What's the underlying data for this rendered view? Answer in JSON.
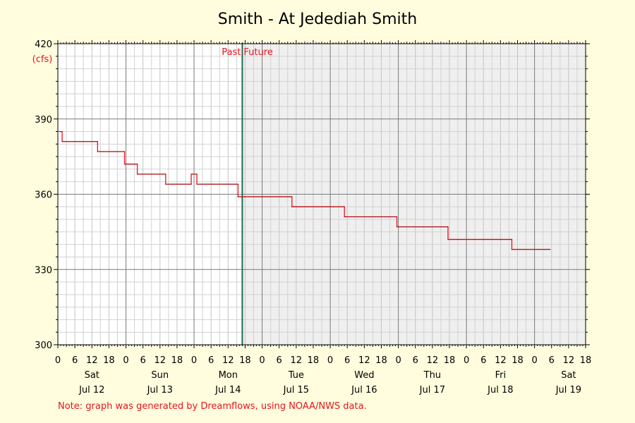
{
  "chart_data": {
    "type": "line",
    "title": "Smith - At Jedediah Smith",
    "y_unit": "(cfs)",
    "ylim": [
      300,
      420
    ],
    "y_ticks": [
      300,
      330,
      360,
      390,
      420
    ],
    "x_range_hours": [
      0,
      186
    ],
    "x_tick_labels": [
      "0",
      "6",
      "12",
      "18"
    ],
    "days": [
      {
        "day": "Sat",
        "date": "Jul 12"
      },
      {
        "day": "Sun",
        "date": "Jul 13"
      },
      {
        "day": "Mon",
        "date": "Jul 14"
      },
      {
        "day": "Tue",
        "date": "Jul 15"
      },
      {
        "day": "Wed",
        "date": "Jul 16"
      },
      {
        "day": "Thu",
        "date": "Jul 17"
      },
      {
        "day": "Fri",
        "date": "Jul 18"
      },
      {
        "day": "Sat",
        "date": "Jul 19"
      }
    ],
    "now_hour": 65,
    "past_label": "Past",
    "future_label": "Future",
    "grid": true,
    "series": [
      {
        "color": "#e8141e",
        "points": [
          [
            0.5,
            385
          ],
          [
            1.5,
            385
          ],
          [
            1.5,
            381
          ],
          [
            14,
            381
          ],
          [
            14,
            377
          ],
          [
            23.5,
            377
          ],
          [
            23.5,
            372
          ],
          [
            28,
            372
          ],
          [
            28,
            368
          ],
          [
            38,
            368
          ],
          [
            38,
            364
          ],
          [
            47,
            364
          ],
          [
            47,
            368
          ],
          [
            49,
            368
          ],
          [
            49,
            364
          ],
          [
            63.5,
            364
          ],
          [
            63.5,
            359
          ],
          [
            82.5,
            359
          ],
          [
            82.5,
            355
          ],
          [
            101,
            355
          ],
          [
            101,
            351
          ],
          [
            119.5,
            351
          ],
          [
            119.5,
            347
          ],
          [
            137.5,
            347
          ],
          [
            137.5,
            342
          ],
          [
            160,
            342
          ],
          [
            160,
            338
          ],
          [
            173.5,
            338
          ]
        ]
      }
    ]
  },
  "footer_note": "Note: graph was generated by Dreamflows, using NOAA/NWS data."
}
